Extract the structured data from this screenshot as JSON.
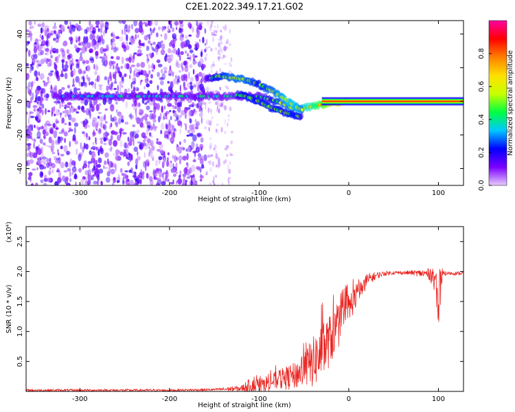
{
  "figure": {
    "title": "C2E1.2022.349.17.21.G02"
  },
  "chart_data": [
    {
      "type": "heatmap",
      "panel": "spectrogram",
      "title": "",
      "xlabel": "Height of straight line (km)",
      "ylabel": "Frequency (Hz)",
      "xlim": [
        -360,
        128
      ],
      "ylim": [
        -50,
        48
      ],
      "x_ticks": [
        -300,
        -200,
        -100,
        0,
        100
      ],
      "y_ticks": [
        -40,
        -20,
        0,
        20,
        40
      ],
      "grid": false,
      "colorbar": {
        "label": "Normalized spectral amplitude",
        "range": [
          0.0,
          1.0
        ],
        "ticks": [
          0.0,
          0.2,
          0.4,
          0.6,
          0.8
        ],
        "colormap": [
          "#e8ccff",
          "#7a00ff",
          "#0000ff",
          "#00c8ff",
          "#00ff40",
          "#c8ff00",
          "#ffe000",
          "#ff8000",
          "#ff0000",
          "#ff00a0"
        ]
      },
      "features": {
        "noise_region_x": [
          -360,
          -160
        ],
        "sparse_noise_region_x": [
          -160,
          -130
        ],
        "main_tone": {
          "x": [
            -300,
            -250,
            -200,
            -160,
            -130,
            -100,
            -80,
            -60,
            -40,
            -20,
            0,
            50,
            100,
            128
          ],
          "freq_hz": [
            3,
            3,
            3,
            3,
            3,
            3,
            0,
            -5,
            -3,
            -1,
            0,
            0,
            0,
            0
          ],
          "strength": [
            0.25,
            0.3,
            0.3,
            0.3,
            0.3,
            0.35,
            0.45,
            0.5,
            0.6,
            0.75,
            0.9,
            0.95,
            0.95,
            0.95
          ]
        },
        "upper_branch": {
          "x": [
            -160,
            -145,
            -130,
            -115,
            -100,
            -85,
            -70,
            -60,
            -52
          ],
          "freq_hz": [
            13,
            15,
            14,
            13,
            10,
            6,
            1,
            -3,
            -5
          ],
          "strength": [
            0.35,
            0.45,
            0.5,
            0.5,
            0.45,
            0.5,
            0.55,
            0.55,
            0.5
          ]
        },
        "lower_branch": {
          "x": [
            -125,
            -115,
            -100,
            -90,
            -80,
            -70,
            -60,
            -52
          ],
          "freq_hz": [
            4,
            3,
            0,
            -3,
            -5,
            -7,
            -8,
            -10
          ],
          "strength": [
            0.4,
            0.45,
            0.45,
            0.45,
            0.45,
            0.45,
            0.45,
            0.4
          ]
        }
      }
    },
    {
      "type": "line",
      "panel": "snr",
      "title": "",
      "xlabel": "Height of straight line (km)",
      "ylabel": "SNR (10 * v/v)",
      "y_multiplier": "(x10⁴)",
      "xlim": [
        -360,
        128
      ],
      "ylim": [
        0,
        2.75
      ],
      "x_ticks": [
        -300,
        -200,
        -100,
        0,
        100
      ],
      "y_ticks": [
        0.5,
        1.0,
        1.5,
        2.0,
        2.5
      ],
      "grid": false,
      "series": [
        {
          "color": "#e8221e",
          "x": [
            -360,
            -300,
            -200,
            -150,
            -120,
            -110,
            -100,
            -90,
            -80,
            -70,
            -60,
            -50,
            -40,
            -30,
            -20,
            -10,
            0,
            10,
            20,
            30,
            40,
            50,
            60,
            70,
            80,
            90,
            95,
            98,
            100,
            102,
            105,
            110,
            120,
            128
          ],
          "y": [
            0.02,
            0.02,
            0.02,
            0.03,
            0.05,
            0.1,
            0.15,
            0.2,
            0.25,
            0.3,
            0.35,
            0.5,
            0.65,
            0.85,
            1.05,
            1.25,
            1.5,
            1.7,
            1.85,
            1.93,
            1.97,
            1.98,
            1.98,
            1.98,
            1.97,
            1.96,
            1.96,
            1.85,
            1.7,
            1.85,
            1.96,
            1.97,
            1.97,
            1.97
          ],
          "noise_amplitude": [
            0.02,
            0.02,
            0.02,
            0.02,
            0.05,
            0.12,
            0.18,
            0.2,
            0.22,
            0.28,
            0.32,
            0.45,
            0.6,
            0.7,
            0.6,
            0.5,
            0.4,
            0.25,
            0.12,
            0.06,
            0.04,
            0.03,
            0.03,
            0.04,
            0.06,
            0.1,
            0.25,
            0.5,
            0.7,
            0.5,
            0.05,
            0.03,
            0.03,
            0.03
          ]
        }
      ]
    }
  ]
}
